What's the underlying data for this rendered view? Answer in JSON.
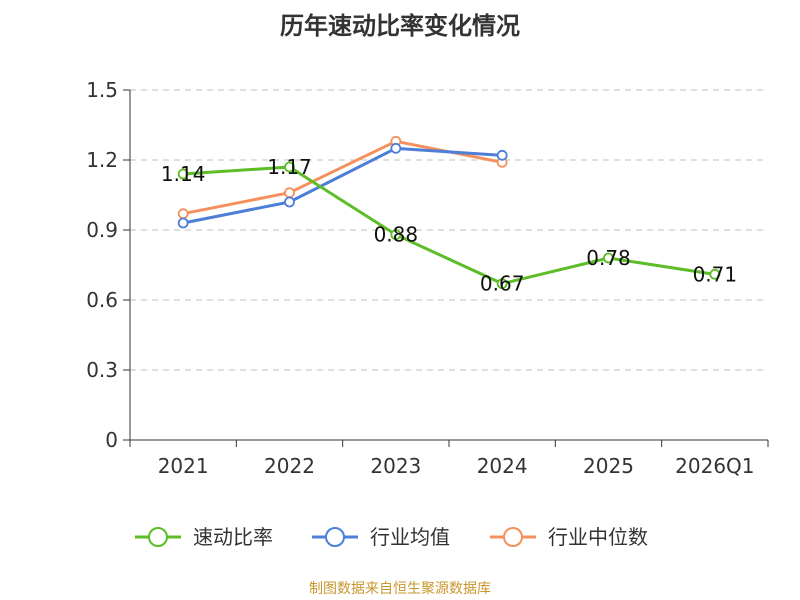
{
  "chart_data": {
    "type": "line",
    "title": "历年速动比率变化情况",
    "categories": [
      "2021",
      "2022",
      "2023",
      "2024",
      "2025",
      "2026Q1"
    ],
    "series": [
      {
        "name": "速动比率",
        "color": "#5cbd26",
        "values": [
          1.14,
          1.17,
          0.88,
          0.67,
          0.78,
          0.71
        ],
        "show_labels": true
      },
      {
        "name": "行业均值",
        "color": "#4d7fd9",
        "values": [
          0.93,
          1.02,
          1.25,
          1.22,
          null,
          null
        ],
        "show_labels": false
      },
      {
        "name": "行业中位数",
        "color": "#f4905c",
        "values": [
          0.97,
          1.06,
          1.28,
          1.19,
          null,
          null
        ],
        "show_labels": false
      }
    ],
    "yticks": [
      "0",
      "0.3",
      "0.6",
      "0.9",
      "1.2",
      "1.5"
    ],
    "ylim": [
      0,
      1.5
    ],
    "grid": true,
    "legend_position": "bottom"
  },
  "source": "制图数据来自恒生聚源数据库"
}
